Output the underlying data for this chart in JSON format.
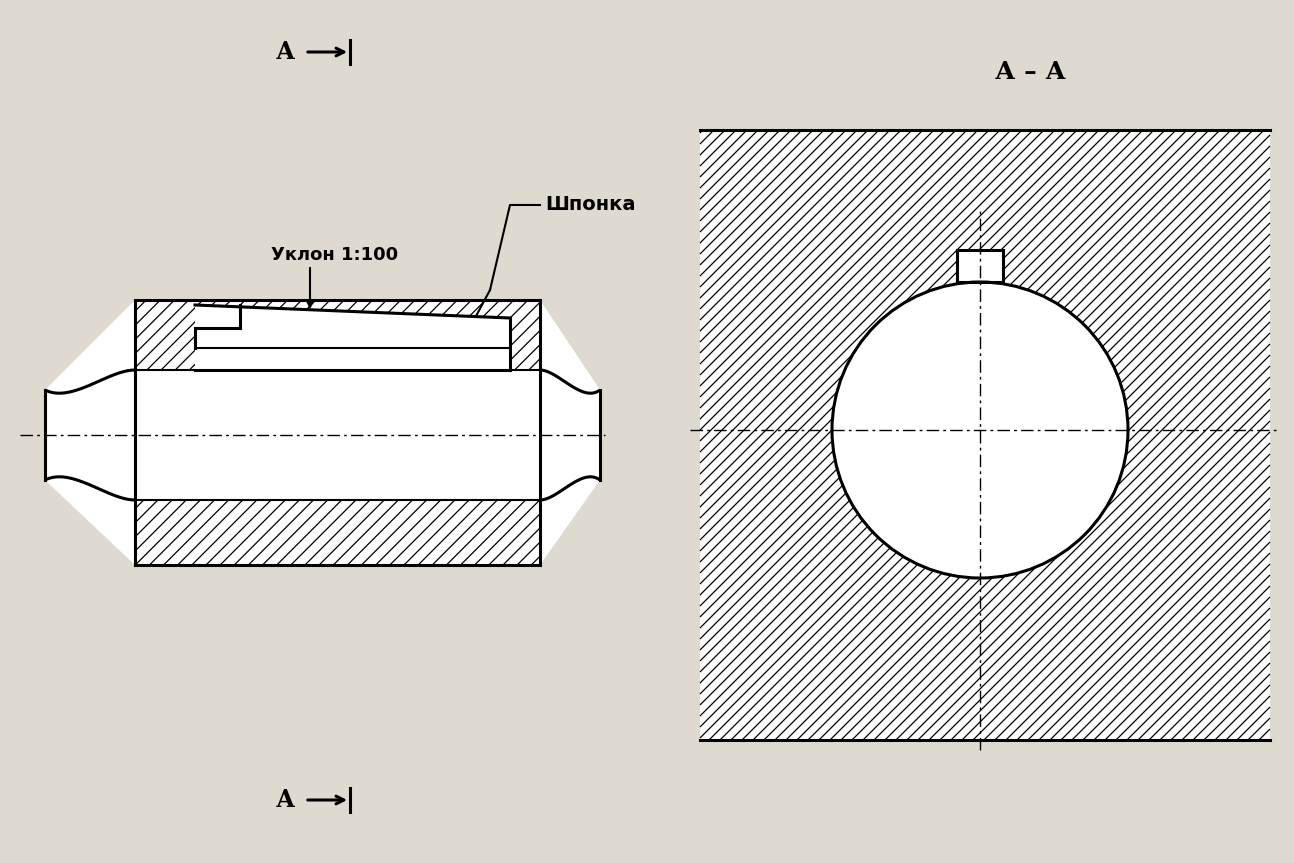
{
  "bg_color": "#dedad0",
  "line_color": "#000000",
  "figsize": [
    12.94,
    8.63
  ],
  "dpi": 100,
  "label_A": "А",
  "label_AA": "А – А",
  "label_uklon": "Уклон 1:100",
  "label_shponka": "Шпонка"
}
